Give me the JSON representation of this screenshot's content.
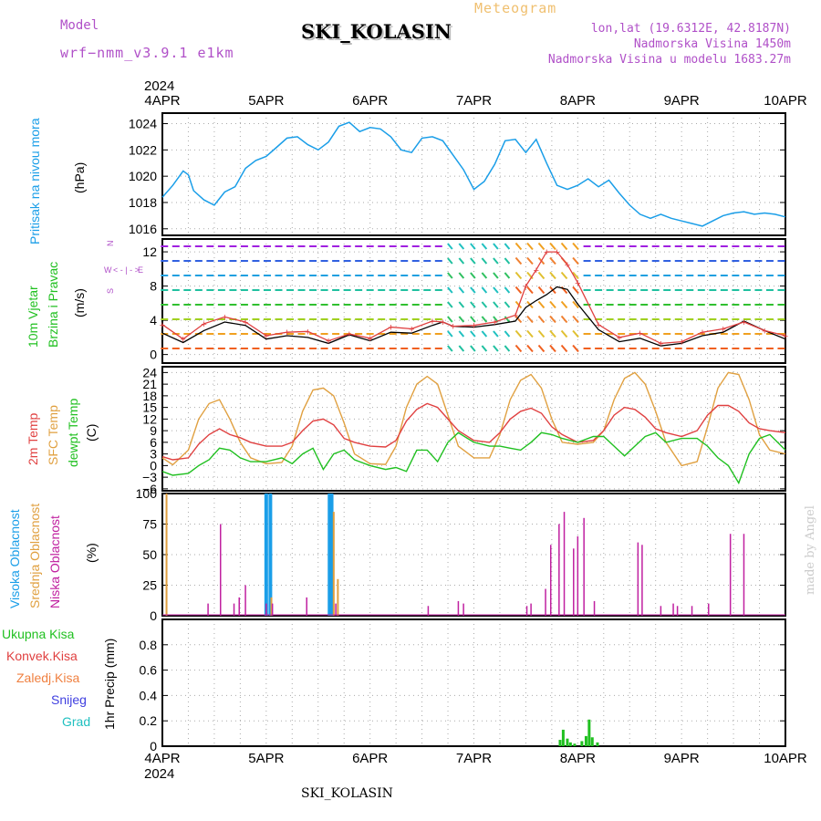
{
  "header": {
    "meteogram": "Meteogram",
    "title": "SKI_KOLASIN",
    "model_label": "Model",
    "model": "wrf−nmm_v3.9.1  e1km",
    "lonlat": "lon,lat (19.6312E, 42.8187N)",
    "altitude": "Nadmorska Visina 1450m",
    "altitude_model": "Nadmorska Visina u modelu 1683.27m"
  },
  "footer": "SKI_KOLASIN",
  "watermark": "made by Angel",
  "time_axis": {
    "year": "2024",
    "ticks": [
      "4APR",
      "5APR",
      "6APR",
      "7APR",
      "8APR",
      "9APR",
      "10APR"
    ]
  },
  "colors": {
    "pressure": "#1a9ee8",
    "temp2m": "#e04040",
    "sfc_temp": "#e0a040",
    "dewpoint": "#20c020",
    "high_cloud": "#1a9ee8",
    "mid_cloud": "#e0a040",
    "low_cloud": "#c020a0",
    "total_precip": "#20c020",
    "conv_precip": "#e04040",
    "frozen_precip": "#f08040",
    "snow": "#4040e0",
    "hail": "#20c0c0",
    "wind_label": "#20c020",
    "wind_arrow_label": "#b050c8",
    "wind_speed": "#000000",
    "wind_gust": "#e04040"
  },
  "chart_data": [
    {
      "type": "line",
      "panel": "pressure",
      "ylabel": "Pritisak na nivou mora",
      "unit": "(hPa)",
      "ylim": [
        1015.5,
        1024.8
      ],
      "yticks": [
        "1016",
        "1018",
        "1020",
        "1022",
        "1024"
      ],
      "x": [
        0,
        0.1,
        0.2,
        0.25,
        0.3,
        0.4,
        0.5,
        0.6,
        0.7,
        0.8,
        0.9,
        1.0,
        1.1,
        1.2,
        1.3,
        1.4,
        1.5,
        1.6,
        1.7,
        1.8,
        1.9,
        2.0,
        2.1,
        2.2,
        2.3,
        2.4,
        2.5,
        2.6,
        2.7,
        2.8,
        2.9,
        3.0,
        3.1,
        3.2,
        3.3,
        3.4,
        3.5,
        3.6,
        3.7,
        3.8,
        3.9,
        4.0,
        4.1,
        4.2,
        4.3,
        4.4,
        4.5,
        4.6,
        4.7,
        4.8,
        4.9,
        5.0,
        5.1,
        5.2,
        5.3,
        5.4,
        5.5,
        5.6,
        5.7,
        5.8,
        5.9,
        6.0
      ],
      "series": [
        {
          "values": [
            1018.4,
            1019.3,
            1020.4,
            1020.1,
            1018.9,
            1018.2,
            1017.8,
            1018.8,
            1019.2,
            1020.6,
            1021.2,
            1021.5,
            1022.2,
            1022.9,
            1023.0,
            1022.4,
            1022.0,
            1022.6,
            1023.8,
            1024.1,
            1023.4,
            1023.7,
            1023.6,
            1023.0,
            1022.0,
            1021.8,
            1022.9,
            1023.0,
            1022.7,
            1021.6,
            1020.5,
            1019.0,
            1019.6,
            1020.9,
            1022.7,
            1022.8,
            1021.8,
            1022.8,
            1021.0,
            1019.3,
            1019.0,
            1019.3,
            1019.8,
            1019.2,
            1019.7,
            1018.7,
            1017.8,
            1017.1,
            1016.8,
            1017.1,
            1016.8,
            1016.6,
            1016.4,
            1016.2,
            1016.6,
            1017.0,
            1017.2,
            1017.3,
            1017.1,
            1017.2,
            1017.1,
            1016.9
          ]
        }
      ]
    },
    {
      "type": "line",
      "panel": "wind",
      "ylabel": [
        "10m Vjetar",
        "Brzina i Pravac"
      ],
      "unit": "(m/s)",
      "arrow_legend": {
        "n": "N",
        "s": "S",
        "w": "W",
        "e": "E",
        "arrows": "< - | - >"
      },
      "ylim": [
        -1,
        13.5
      ],
      "yticks": [
        "0",
        "4",
        "8",
        "12"
      ],
      "x": [
        0,
        0.2,
        0.4,
        0.6,
        0.8,
        1.0,
        1.2,
        1.4,
        1.6,
        1.8,
        2.0,
        2.2,
        2.4,
        2.6,
        2.7,
        2.8,
        3.0,
        3.2,
        3.4,
        3.5,
        3.6,
        3.7,
        3.8,
        3.9,
        4.0,
        4.2,
        4.4,
        4.6,
        4.8,
        5.0,
        5.2,
        5.4,
        5.6,
        5.8,
        6.0
      ],
      "series": [
        {
          "values": [
            2.5,
            1.4,
            2.8,
            3.8,
            3.4,
            1.8,
            2.2,
            2.0,
            1.3,
            2.3,
            1.6,
            2.6,
            2.5,
            3.4,
            3.8,
            3.3,
            3.2,
            3.5,
            3.9,
            5.5,
            6.3,
            7.0,
            7.9,
            7.6,
            5.9,
            2.9,
            1.5,
            1.9,
            1.0,
            1.3,
            2.2,
            2.6,
            3.9,
            2.8,
            1.8
          ]
        },
        {
          "values": [
            3.5,
            1.8,
            3.6,
            4.4,
            3.8,
            2.2,
            2.6,
            2.7,
            1.6,
            2.4,
            1.9,
            3.2,
            3.0,
            3.9,
            3.8,
            3.3,
            3.4,
            3.8,
            4.6,
            8.0,
            9.9,
            12.0,
            12.0,
            10.5,
            8.4,
            3.5,
            2.0,
            2.5,
            1.3,
            1.5,
            2.6,
            3.0,
            3.8,
            2.8,
            2.2
          ]
        }
      ]
    },
    {
      "type": "line",
      "panel": "temperature",
      "ylabel": [
        "2m Temp",
        "SFC Temp",
        "dewpt Temp"
      ],
      "unit": "(C)",
      "ylim": [
        -6.5,
        25.5
      ],
      "yticks": [
        "−6",
        "−3",
        "0",
        "3",
        "6",
        "9",
        "12",
        "15",
        "18",
        "21",
        "24"
      ],
      "x": [
        0,
        0.1,
        0.25,
        0.35,
        0.45,
        0.55,
        0.65,
        0.75,
        0.85,
        1.0,
        1.15,
        1.25,
        1.35,
        1.45,
        1.55,
        1.65,
        1.75,
        1.85,
        2.0,
        2.15,
        2.25,
        2.35,
        2.45,
        2.55,
        2.65,
        2.75,
        2.85,
        3.0,
        3.15,
        3.25,
        3.35,
        3.45,
        3.55,
        3.65,
        3.75,
        3.85,
        4.0,
        4.15,
        4.25,
        4.35,
        4.45,
        4.55,
        4.65,
        4.75,
        4.85,
        5.0,
        5.15,
        5.25,
        5.35,
        5.45,
        5.55,
        5.65,
        5.75,
        5.85,
        6.0
      ],
      "series": [
        {
          "values": [
            2.3,
            1.5,
            2.0,
            5.5,
            8.0,
            9.5,
            8.0,
            7.2,
            6.0,
            5.0,
            5.0,
            6.0,
            9.0,
            11.5,
            12.0,
            10.5,
            7.0,
            6.0,
            5.0,
            4.8,
            6.5,
            11.5,
            14.5,
            16.0,
            15.0,
            12.0,
            9.0,
            6.5,
            6.0,
            8.5,
            12.0,
            14.0,
            14.8,
            13.5,
            10.0,
            8.0,
            6.0,
            6.5,
            9.0,
            13.0,
            15.0,
            14.5,
            12.5,
            9.5,
            8.5,
            7.5,
            9.0,
            13.0,
            15.5,
            15.5,
            14.0,
            11.0,
            9.5,
            9.0,
            8.5
          ]
        },
        {
          "values": [
            2.0,
            0.2,
            4.0,
            12.0,
            16.0,
            17.0,
            12.0,
            6.0,
            2.0,
            0.5,
            0.8,
            5.0,
            14.0,
            19.5,
            20.0,
            18.0,
            11.0,
            3.0,
            0.5,
            0.3,
            5.0,
            15.0,
            21.0,
            23.0,
            21.0,
            13.0,
            5.0,
            2.0,
            2.0,
            8.0,
            17.0,
            22.0,
            23.5,
            20.0,
            12.0,
            6.0,
            5.5,
            6.0,
            9.0,
            17.0,
            22.5,
            24.0,
            21.0,
            14.0,
            6.0,
            0.0,
            1.0,
            10.0,
            20.0,
            24.0,
            23.5,
            17.0,
            8.0,
            4.0,
            3.0
          ]
        },
        {
          "values": [
            -1.5,
            -2.5,
            -2.0,
            0.0,
            1.5,
            4.5,
            4.0,
            2.0,
            1.0,
            1.0,
            2.0,
            0.5,
            3.0,
            4.5,
            -1.0,
            3.0,
            4.0,
            1.5,
            0.0,
            -1.0,
            -0.5,
            -1.5,
            4.0,
            4.0,
            1.0,
            6.0,
            8.5,
            6.0,
            5.0,
            5.0,
            4.5,
            4.0,
            6.0,
            8.5,
            8.0,
            7.0,
            6.0,
            7.5,
            7.5,
            5.0,
            2.5,
            5.0,
            7.5,
            8.5,
            6.0,
            7.0,
            7.0,
            5.0,
            2.0,
            0.0,
            -4.5,
            3.0,
            7.0,
            8.0,
            4.0
          ]
        }
      ]
    },
    {
      "type": "bar",
      "panel": "clouds",
      "ylabel": [
        "Visoka Oblacnost",
        "Srednja Oblacnost",
        "Niska Oblacnost"
      ],
      "unit": "(%)",
      "ylim": [
        0,
        100
      ],
      "yticks": [
        "0",
        "25",
        "50",
        "75",
        "100"
      ],
      "series": [
        {
          "name": "high",
          "x": [
            1.0,
            1.04,
            1.61,
            1.63
          ],
          "values": [
            100,
            100,
            100,
            100
          ]
        },
        {
          "name": "mid",
          "x": [
            0.04,
            1.05,
            1.65,
            1.69
          ],
          "values": [
            100,
            15,
            85,
            30
          ]
        },
        {
          "name": "low",
          "x": [
            0.44,
            0.56,
            0.69,
            0.74,
            0.8,
            1.0,
            1.06,
            1.39,
            1.67,
            2.56,
            2.85,
            2.9,
            3.51,
            3.55,
            3.69,
            3.74,
            3.82,
            3.87,
            3.96,
            4.0,
            4.06,
            4.16,
            4.58,
            4.62,
            4.8,
            4.92,
            4.96,
            5.1,
            5.26,
            5.47,
            5.6
          ],
          "values": [
            10,
            75,
            10,
            15,
            25,
            10,
            10,
            15,
            10,
            8,
            12,
            10,
            8,
            10,
            22,
            58,
            75,
            85,
            55,
            65,
            80,
            12,
            60,
            58,
            8,
            10,
            8,
            8,
            10,
            67,
            67
          ]
        }
      ]
    },
    {
      "type": "bar",
      "panel": "precipitation",
      "ylabel": "1hr Precip (mm)",
      "legend": [
        "Ukupna  Kisa",
        "Konvek.Kisa",
        "Zaledj.Kisa",
        "Snijeg",
        "Grad"
      ],
      "ylim": [
        0,
        1.0
      ],
      "yticks": [
        "0",
        "0.2",
        "0.4",
        "0.6",
        "0.8"
      ],
      "x": [
        3.83,
        3.86,
        3.9,
        3.93,
        3.97,
        4.04,
        4.08,
        4.11,
        4.14,
        4.19
      ],
      "series": [
        {
          "name": "Ukupna  Kisa",
          "values": [
            0.05,
            0.13,
            0.06,
            0.03,
            0.02,
            0.04,
            0.08,
            0.21,
            0.07,
            0.03
          ]
        }
      ]
    }
  ]
}
